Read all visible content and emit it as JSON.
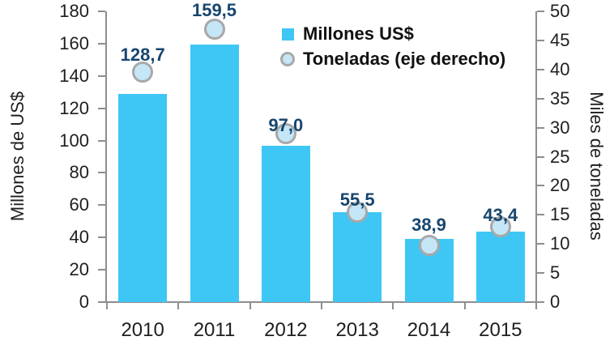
{
  "chart_data": {
    "type": "bar",
    "title": "",
    "categories": [
      "2010",
      "2011",
      "2012",
      "2013",
      "2014",
      "2015"
    ],
    "series": [
      {
        "name": "Millones US$",
        "type": "bar",
        "axis": "left",
        "values": [
          128.7,
          159.5,
          97.0,
          55.5,
          38.9,
          43.4
        ],
        "labels": [
          "128,7",
          "159,5",
          "97,0",
          "55,5",
          "38,9",
          "43,4"
        ]
      },
      {
        "name": "Toneladas (eje derecho)",
        "type": "scatter",
        "axis": "right",
        "values": [
          39.5,
          47.0,
          29.0,
          15.5,
          9.8,
          13.0
        ]
      }
    ],
    "left_axis": {
      "label": "Millones de US$",
      "min": 0,
      "max": 180,
      "step": 20,
      "ticks": [
        "180",
        "160",
        "140",
        "120",
        "100",
        "80",
        "60",
        "40",
        "20",
        "0"
      ]
    },
    "right_axis": {
      "label": "Miles de toneladas",
      "min": 0,
      "max": 50,
      "step": 5,
      "ticks": [
        "50",
        "45",
        "40",
        "35",
        "30",
        "25",
        "20",
        "15",
        "10",
        "5",
        "0"
      ]
    },
    "legend": {
      "position": "top-center",
      "items": [
        {
          "label": "Millones US$",
          "marker": "square"
        },
        {
          "label": "Toneladas (eje derecho)",
          "marker": "circle"
        }
      ]
    },
    "grid": false,
    "colors": {
      "bar": "#3EC7F5",
      "marker_fill": "#C5E6F7",
      "marker_ring": "#A8A8A8",
      "data_label": "#17466F",
      "axis_text": "#1F1F1F",
      "axis_line": "#8E8E8E"
    }
  }
}
